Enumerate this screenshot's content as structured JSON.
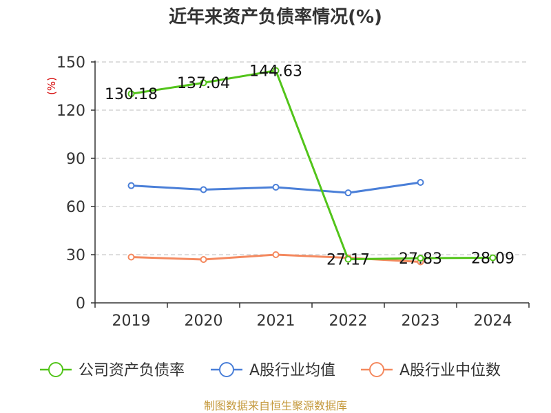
{
  "chart_data": {
    "type": "line",
    "title": "近年来资产负债率情况(%)",
    "ylabel": "(%)",
    "xlabel": "",
    "categories": [
      "2019",
      "2020",
      "2021",
      "2022",
      "2023",
      "2024"
    ],
    "ylim": [
      0,
      150
    ],
    "yticks": [
      0,
      30,
      60,
      90,
      120,
      150
    ],
    "ytick_labels": [
      "0",
      "30",
      "60",
      "90",
      "120",
      "150"
    ],
    "grid": true,
    "legend_position": "bottom",
    "series": [
      {
        "name": "公司资产负债率",
        "color": "#52c41a",
        "values": [
          130.18,
          137.04,
          144.63,
          27.17,
          27.83,
          28.09
        ],
        "labels": [
          "130.18",
          "137.04",
          "144.63",
          "27.17",
          "27.83",
          "28.09"
        ]
      },
      {
        "name": "A股行业均值",
        "color": "#4a7fd8",
        "values": [
          73.0,
          70.5,
          72.0,
          68.5,
          75.0,
          null
        ]
      },
      {
        "name": "A股行业中位数",
        "color": "#f4895f",
        "values": [
          28.5,
          27.0,
          30.0,
          28.0,
          25.5,
          null
        ]
      }
    ]
  },
  "footer": {
    "source": "制图数据来自恒生聚源数据库"
  }
}
